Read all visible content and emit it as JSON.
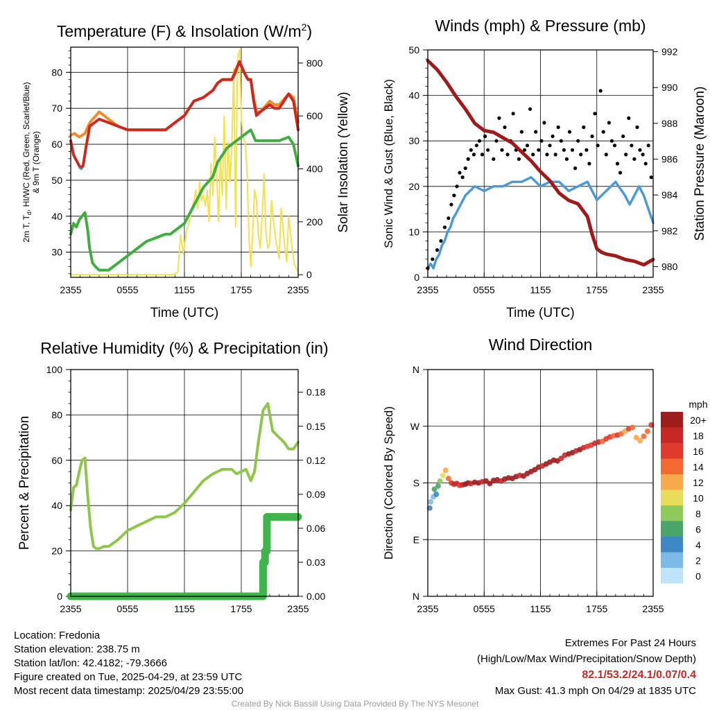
{
  "colors": {
    "temp": "#cc2a1e",
    "dew": "#3fae3f",
    "temp9m": "#f28a2e",
    "wc": "#4e8fd0",
    "solar": "#f4e04a",
    "wind": "#4b9ad6",
    "gust": "#000000",
    "pressure": "#a01a1a",
    "rh": "#8dc64b",
    "precip": "#3fb44a"
  },
  "chart_data": [
    {
      "type": "line",
      "title": "Temperature (F) & Insolation (W/m",
      "title_sup": "2",
      "title_close": ")",
      "xlabel": "Time (UTC)",
      "ylabel_lines": [
        "2m T, T",
        "d",
        ", HI/WC (Red, Green, Scarlet/Blue)",
        "& 9m T (Orange)"
      ],
      "ylabel2": "Solar Insolation (Yellow)",
      "xticks": [
        "2355",
        "0555",
        "1155",
        "1755",
        "2355"
      ],
      "ylim": [
        23,
        87
      ],
      "yticks": [
        30,
        40,
        50,
        60,
        70,
        80
      ],
      "y2lim": [
        -10,
        860
      ],
      "y2ticks": [
        0,
        200,
        400,
        600,
        800
      ],
      "grid": true,
      "series": [
        {
          "key": "temp9m",
          "axis": "y",
          "width": 4,
          "x": [
            0,
            0.4,
            0.9,
            1.5,
            2,
            3,
            4,
            5,
            6,
            7,
            8,
            9,
            10,
            11,
            12,
            13,
            14,
            15,
            15.5,
            16,
            16.5,
            17,
            17.3,
            17.8,
            18.3,
            18.7,
            19,
            19.3,
            19.6,
            20,
            21,
            21.5,
            22,
            23,
            23.5,
            24
          ],
          "y": [
            62.5,
            63,
            62,
            63,
            66,
            69,
            67,
            65,
            64,
            64,
            64,
            64,
            64,
            66,
            68,
            72,
            73,
            75,
            77,
            78,
            78,
            78,
            80,
            83,
            80,
            78,
            78,
            73,
            69,
            69,
            72,
            71,
            71,
            74,
            73,
            66
          ]
        },
        {
          "key": "temp",
          "axis": "y",
          "width": 4,
          "x": [
            0,
            0.3,
            0.7,
            1,
            1.3,
            1.6,
            2,
            3,
            4,
            5,
            6,
            7,
            8,
            9,
            10,
            11,
            12,
            13,
            14,
            15,
            15.5,
            16,
            16.5,
            17,
            17.3,
            17.8,
            18.3,
            18.7,
            19,
            19.3,
            19.6,
            20,
            21,
            21.5,
            22,
            23,
            23.5,
            24
          ],
          "y": [
            61,
            57,
            55,
            53.5,
            54,
            59,
            65,
            67,
            66,
            65,
            64,
            64,
            64,
            64,
            64,
            66,
            68,
            72,
            73,
            75,
            77,
            78,
            78,
            78,
            79.5,
            83,
            80,
            78,
            78,
            72,
            68,
            69,
            71,
            70,
            70,
            74,
            72,
            64
          ]
        },
        {
          "key": "wc",
          "axis": "y",
          "width": 2,
          "x": [
            0.9,
            1.1,
            1.3
          ],
          "y": [
            53.5,
            53,
            53.5
          ]
        },
        {
          "key": "dew",
          "axis": "y",
          "width": 4,
          "x": [
            0,
            0.3,
            0.6,
            0.9,
            1.2,
            1.5,
            1.8,
            2,
            2.3,
            2.6,
            3,
            3.5,
            4,
            5,
            6,
            7,
            8,
            9,
            10,
            10.5,
            11,
            12,
            13,
            14,
            15,
            15.5,
            16,
            16.5,
            17,
            17.5,
            18,
            18.5,
            19,
            19.5,
            20,
            21,
            22,
            23,
            23.5,
            24
          ],
          "y": [
            35,
            38,
            37,
            39,
            40,
            41,
            36,
            31,
            27,
            26,
            25,
            25,
            25,
            27,
            29,
            31,
            33,
            34,
            35,
            35,
            36,
            38,
            43,
            48,
            51,
            55,
            57,
            59,
            60,
            61,
            62,
            63,
            64,
            61,
            61,
            61,
            61,
            62,
            60,
            54
          ]
        },
        {
          "key": "solar",
          "axis": "y2",
          "width": 2,
          "x": [
            0,
            4,
            8,
            10.8,
            11.3,
            11.6,
            11.9,
            12.2,
            12.5,
            12.8,
            13,
            13.2,
            13.4,
            13.6,
            13.8,
            14,
            14.2,
            14.4,
            14.6,
            14.8,
            15,
            15.2,
            15.4,
            15.6,
            15.8,
            16,
            16.2,
            16.4,
            16.6,
            16.8,
            17,
            17.2,
            17.4,
            17.6,
            17.8,
            18,
            18.2,
            18.4,
            18.6,
            18.8,
            19,
            19.2,
            19.4,
            19.6,
            19.8,
            20,
            20.2,
            20.4,
            20.6,
            20.8,
            21,
            21.2,
            21.4,
            21.6,
            21.8,
            22,
            22.2,
            22.4,
            22.6,
            22.8,
            23,
            23.3,
            23.6,
            24
          ],
          "y": [
            0,
            0,
            0,
            0,
            10,
            150,
            80,
            160,
            200,
            250,
            280,
            320,
            250,
            350,
            280,
            300,
            260,
            320,
            200,
            420,
            300,
            520,
            380,
            200,
            450,
            300,
            600,
            250,
            500,
            350,
            480,
            780,
            180,
            820,
            850,
            600,
            520,
            500,
            400,
            150,
            30,
            150,
            320,
            280,
            150,
            100,
            220,
            380,
            160,
            100,
            120,
            280,
            200,
            140,
            100,
            60,
            250,
            180,
            100,
            50,
            220,
            120,
            40,
            10
          ]
        }
      ]
    },
    {
      "type": "line",
      "title": "Winds (mph) & Pressure (mb)",
      "xlabel": "Time (UTC)",
      "ylabel": "Sonic Wind & Gust (Blue, Black)",
      "ylabel2": "Station Pressure (Maroon)",
      "xticks": [
        "2355",
        "0555",
        "1155",
        "1755",
        "2355"
      ],
      "ylim": [
        0,
        50
      ],
      "yticks": [
        0,
        10,
        20,
        30,
        40,
        50
      ],
      "y2lim": [
        979.4,
        992.1
      ],
      "y2ticks": [
        980,
        982,
        984,
        986,
        988,
        990,
        992
      ],
      "grid": true,
      "gust_max": {
        "value": 41.3,
        "x": 18.67
      },
      "series": [
        {
          "key": "wind",
          "axis": "y",
          "width": 3.5,
          "x": [
            0,
            0.3,
            0.6,
            0.9,
            1.2,
            1.5,
            1.8,
            2.1,
            2.4,
            2.7,
            3,
            3.5,
            4,
            4.5,
            5,
            6,
            7,
            8,
            9,
            10,
            11,
            12,
            13,
            14,
            15,
            16,
            17,
            18,
            19,
            20,
            21,
            21.5,
            22,
            22.5,
            23,
            23.5,
            24
          ],
          "y": [
            2,
            3,
            2,
            4,
            5,
            7,
            8,
            10,
            11,
            13,
            14,
            16,
            18,
            19,
            20,
            19,
            20,
            20,
            21,
            21,
            22,
            20,
            21,
            21,
            19,
            20,
            21,
            17,
            19,
            21,
            18,
            16,
            18,
            20,
            18,
            15,
            12
          ]
        },
        {
          "key": "pressure",
          "axis": "y2",
          "width": 5,
          "x": [
            0,
            1,
            2,
            3,
            4,
            5,
            6,
            7,
            8,
            9,
            10,
            11,
            12,
            13,
            14,
            15,
            16,
            17,
            17.5,
            18,
            18.5,
            19,
            20,
            21,
            22,
            23,
            24
          ],
          "y": [
            991.5,
            991,
            990.3,
            989.5,
            988.8,
            988,
            987.6,
            987.5,
            987.2,
            986.9,
            986.4,
            985.9,
            985.3,
            984.8,
            984.1,
            983.7,
            983.5,
            982.8,
            981.8,
            981,
            980.8,
            980.7,
            980.6,
            980.4,
            980.3,
            980.1,
            980.4
          ]
        }
      ],
      "scatter": {
        "key": "gust",
        "x": [
          0,
          0.5,
          1,
          1.4,
          1.8,
          2.2,
          2.5,
          2.8,
          3.1,
          3.4,
          3.7,
          4,
          4.3,
          4.6,
          4.9,
          5.2,
          5.5,
          5.8,
          6.1,
          6.4,
          6.7,
          7,
          7.3,
          7.6,
          7.9,
          8.2,
          8.5,
          8.8,
          9.1,
          9.4,
          9.7,
          10,
          10.3,
          10.6,
          10.9,
          11.2,
          11.5,
          11.8,
          12.1,
          12.4,
          12.7,
          13,
          13.3,
          13.6,
          13.9,
          14.2,
          14.5,
          14.8,
          15.1,
          15.4,
          15.7,
          16,
          16.3,
          16.6,
          16.9,
          17.2,
          17.5,
          17.8,
          18.1,
          18.4,
          18.7,
          19,
          19.3,
          19.6,
          19.9,
          20.2,
          20.5,
          20.8,
          21.1,
          21.4,
          21.7,
          22,
          22.3,
          22.6,
          22.9,
          23.2,
          23.5,
          23.8
        ],
        "y": [
          2,
          4,
          6,
          8,
          11,
          13,
          16,
          18,
          20,
          23,
          22,
          24,
          26,
          28,
          27,
          29,
          30,
          27,
          31,
          28,
          32,
          26,
          30,
          35,
          28,
          33,
          27,
          30,
          36,
          28,
          26,
          32,
          28,
          29,
          37,
          27,
          32,
          28,
          30,
          34,
          27,
          29,
          31,
          27,
          33,
          30,
          28,
          26,
          32,
          28,
          24,
          30,
          27,
          33,
          28,
          25,
          31,
          36,
          29,
          41,
          32,
          27,
          34,
          30,
          29,
          25,
          23,
          31,
          27,
          35,
          29,
          26,
          33,
          28,
          27,
          25,
          29,
          22
        ]
      }
    },
    {
      "type": "line",
      "title": "Relative Humidity (%) & Precipitation (in)",
      "ylabel": "Percent & Precipitation",
      "xticks": [
        "2355",
        "0555",
        "1155",
        "1755",
        "2355"
      ],
      "ylim": [
        0,
        100
      ],
      "yticks": [
        0,
        20,
        40,
        60,
        80,
        100
      ],
      "y2lim": [
        0,
        0.2
      ],
      "y2ticks": [
        0.0,
        0.03,
        0.06,
        0.09,
        0.12,
        0.15,
        0.18
      ],
      "grid": true,
      "series": [
        {
          "key": "rh",
          "axis": "y",
          "width": 4,
          "x": [
            0,
            0.3,
            0.6,
            0.9,
            1.2,
            1.5,
            1.8,
            2.1,
            2.4,
            2.7,
            3,
            3.5,
            4,
            5,
            6,
            7,
            8,
            9,
            10,
            11,
            12,
            13,
            14,
            15,
            16,
            17,
            17.5,
            18,
            18.5,
            19,
            19.4,
            19.8,
            20.3,
            20.8,
            21.3,
            22,
            22.5,
            23,
            23.5,
            24
          ],
          "y": [
            38,
            48,
            49,
            55,
            60,
            61,
            44,
            30,
            22,
            21,
            21,
            22,
            22,
            25,
            29,
            31,
            33,
            35,
            35,
            37,
            41,
            46,
            51,
            54,
            56,
            56,
            54,
            55,
            56,
            51,
            55,
            68,
            82,
            85,
            73,
            70,
            68,
            65,
            65,
            68
          ]
        },
        {
          "key": "precip",
          "axis": "y2",
          "width": 11,
          "x": [
            0,
            20.3,
            20.3,
            20.5,
            20.5,
            20.7,
            20.7,
            24
          ],
          "y": [
            0,
            0,
            0.03,
            0.03,
            0.04,
            0.04,
            0.07,
            0.07
          ]
        }
      ]
    },
    {
      "type": "scatter",
      "title": "Wind Direction",
      "ylabel": "Direction (Colored By Speed)",
      "xticks": [
        "2355",
        "0555",
        "1155",
        "1755",
        "2355"
      ],
      "ylim": [
        0,
        360
      ],
      "ytick_values": [
        0,
        90,
        180,
        270,
        360
      ],
      "ytick_labels": [
        "N",
        "E",
        "S",
        "W",
        "N"
      ],
      "grid": true,
      "legend_title": "mph",
      "legend_labels": [
        "20+",
        "18",
        "16",
        "14",
        "12",
        "10",
        "8",
        "6",
        "4",
        "2",
        "0"
      ],
      "legend_colors": [
        "#9e1c1c",
        "#c62828",
        "#e03a2f",
        "#f26a30",
        "#f7a94b",
        "#e8dd5a",
        "#8fc95b",
        "#4aa56a",
        "#3f86c4",
        "#7fb9e6",
        "#bfe3f8"
      ],
      "x": [
        0.3,
        0.6,
        0.9,
        0.2,
        0.7,
        1.1,
        1.3,
        1.6,
        1.9,
        2.2,
        2.5,
        2.8,
        3.1,
        3.4,
        3.7,
        4,
        4.3,
        4.6,
        5,
        5.4,
        5.8,
        6.2,
        6.6,
        7,
        7.4,
        7.8,
        8.2,
        8.6,
        9,
        9.4,
        9.8,
        10.2,
        10.6,
        11,
        11.4,
        11.8,
        12.2,
        12.6,
        13,
        13.4,
        13.8,
        14.2,
        14.6,
        15,
        15.4,
        15.8,
        16.2,
        16.6,
        17,
        17.4,
        17.8,
        18.2,
        18.6,
        19,
        19.4,
        19.8,
        20.2,
        20.6,
        21,
        21.4,
        21.8,
        22.2,
        22.6,
        23,
        23.4,
        23.8
      ],
      "y": [
        150,
        158,
        162,
        140,
        170,
        175,
        183,
        192,
        200,
        187,
        180,
        178,
        179,
        176,
        177,
        178,
        180,
        179,
        181,
        180,
        182,
        183,
        179,
        184,
        185,
        183,
        186,
        188,
        187,
        190,
        192,
        191,
        195,
        198,
        201,
        205,
        207,
        210,
        213,
        216,
        215,
        219,
        224,
        226,
        228,
        231,
        233,
        236,
        238,
        240,
        243,
        245,
        246,
        250,
        253,
        255,
        256,
        258,
        262,
        266,
        268,
        252,
        247,
        254,
        262,
        272
      ],
      "speeds": [
        1,
        2,
        3,
        4,
        5,
        6,
        7,
        9,
        11,
        13,
        15,
        17,
        18,
        16,
        17,
        19,
        20,
        18,
        19,
        20,
        18,
        19,
        20,
        21,
        19,
        18,
        20,
        21,
        19,
        20,
        18,
        19,
        21,
        20,
        19,
        20,
        18,
        19,
        20,
        21,
        19,
        17,
        18,
        19,
        20,
        18,
        19,
        17,
        16,
        15,
        18,
        17,
        14,
        16,
        15,
        13,
        16,
        14,
        12,
        15,
        13,
        11,
        12,
        14,
        13,
        15
      ]
    }
  ],
  "info": {
    "location": "Location: Fredonia",
    "elevation": "Station elevation: 238.75 m",
    "latlon": "Station lat/lon: 42.4182; -79.3666",
    "created": "Figure created on Tue, 2025-04-29, at 23:59 UTC",
    "recent": "Most recent data timestamp: 2025/04/29 23:55:00"
  },
  "extremes": {
    "title": "Extremes For Past 24 Hours",
    "subtitle": "(High/Low/Max Wind/Precipitation/Snow Depth)",
    "values": "82.1/53.2/24.1/0.07/0.4",
    "gust": "Max Gust: 41.3 mph On 04/29 at 1835 UTC"
  },
  "credit": "Created By Nick Bassill Using Data Provided By The NYS Mesonet"
}
